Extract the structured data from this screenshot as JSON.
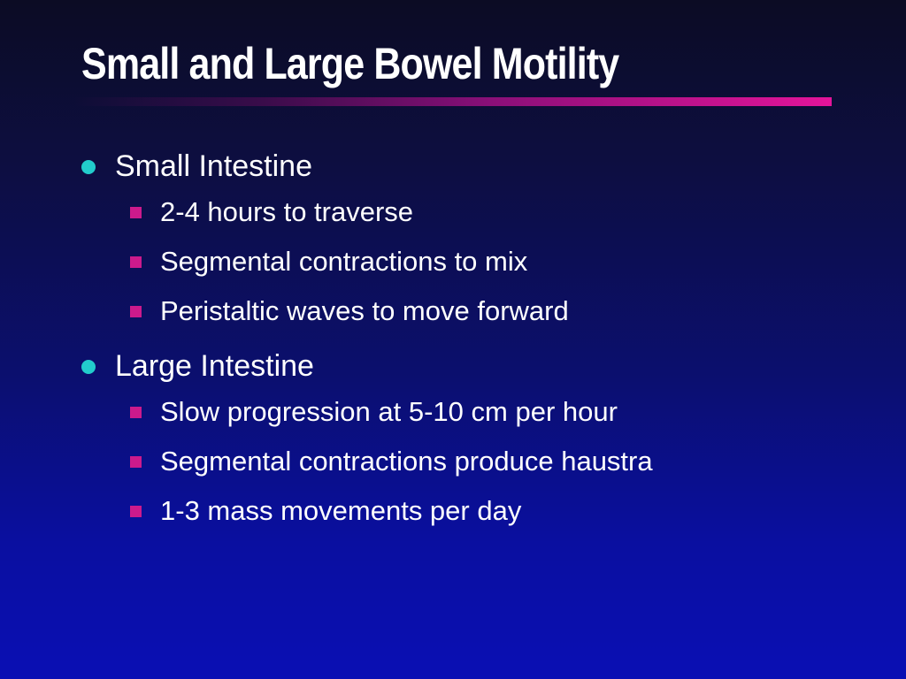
{
  "title": "Small and Large Bowel Motility",
  "colors": {
    "title_rule": "#e4149a",
    "level1_bullet": "#22cccc",
    "level2_bullet": "#cc1a8c",
    "background_top": "#0c0c24",
    "background_bottom": "#0a0fb4"
  },
  "sections": [
    {
      "heading": "Small Intestine",
      "items": [
        "2-4 hours to traverse",
        "Segmental contractions to mix",
        "Peristaltic waves to move forward"
      ]
    },
    {
      "heading": "Large Intestine",
      "items": [
        "Slow progression at 5-10 cm per hour",
        "Segmental contractions produce haustra",
        "1-3 mass movements per day"
      ]
    }
  ]
}
